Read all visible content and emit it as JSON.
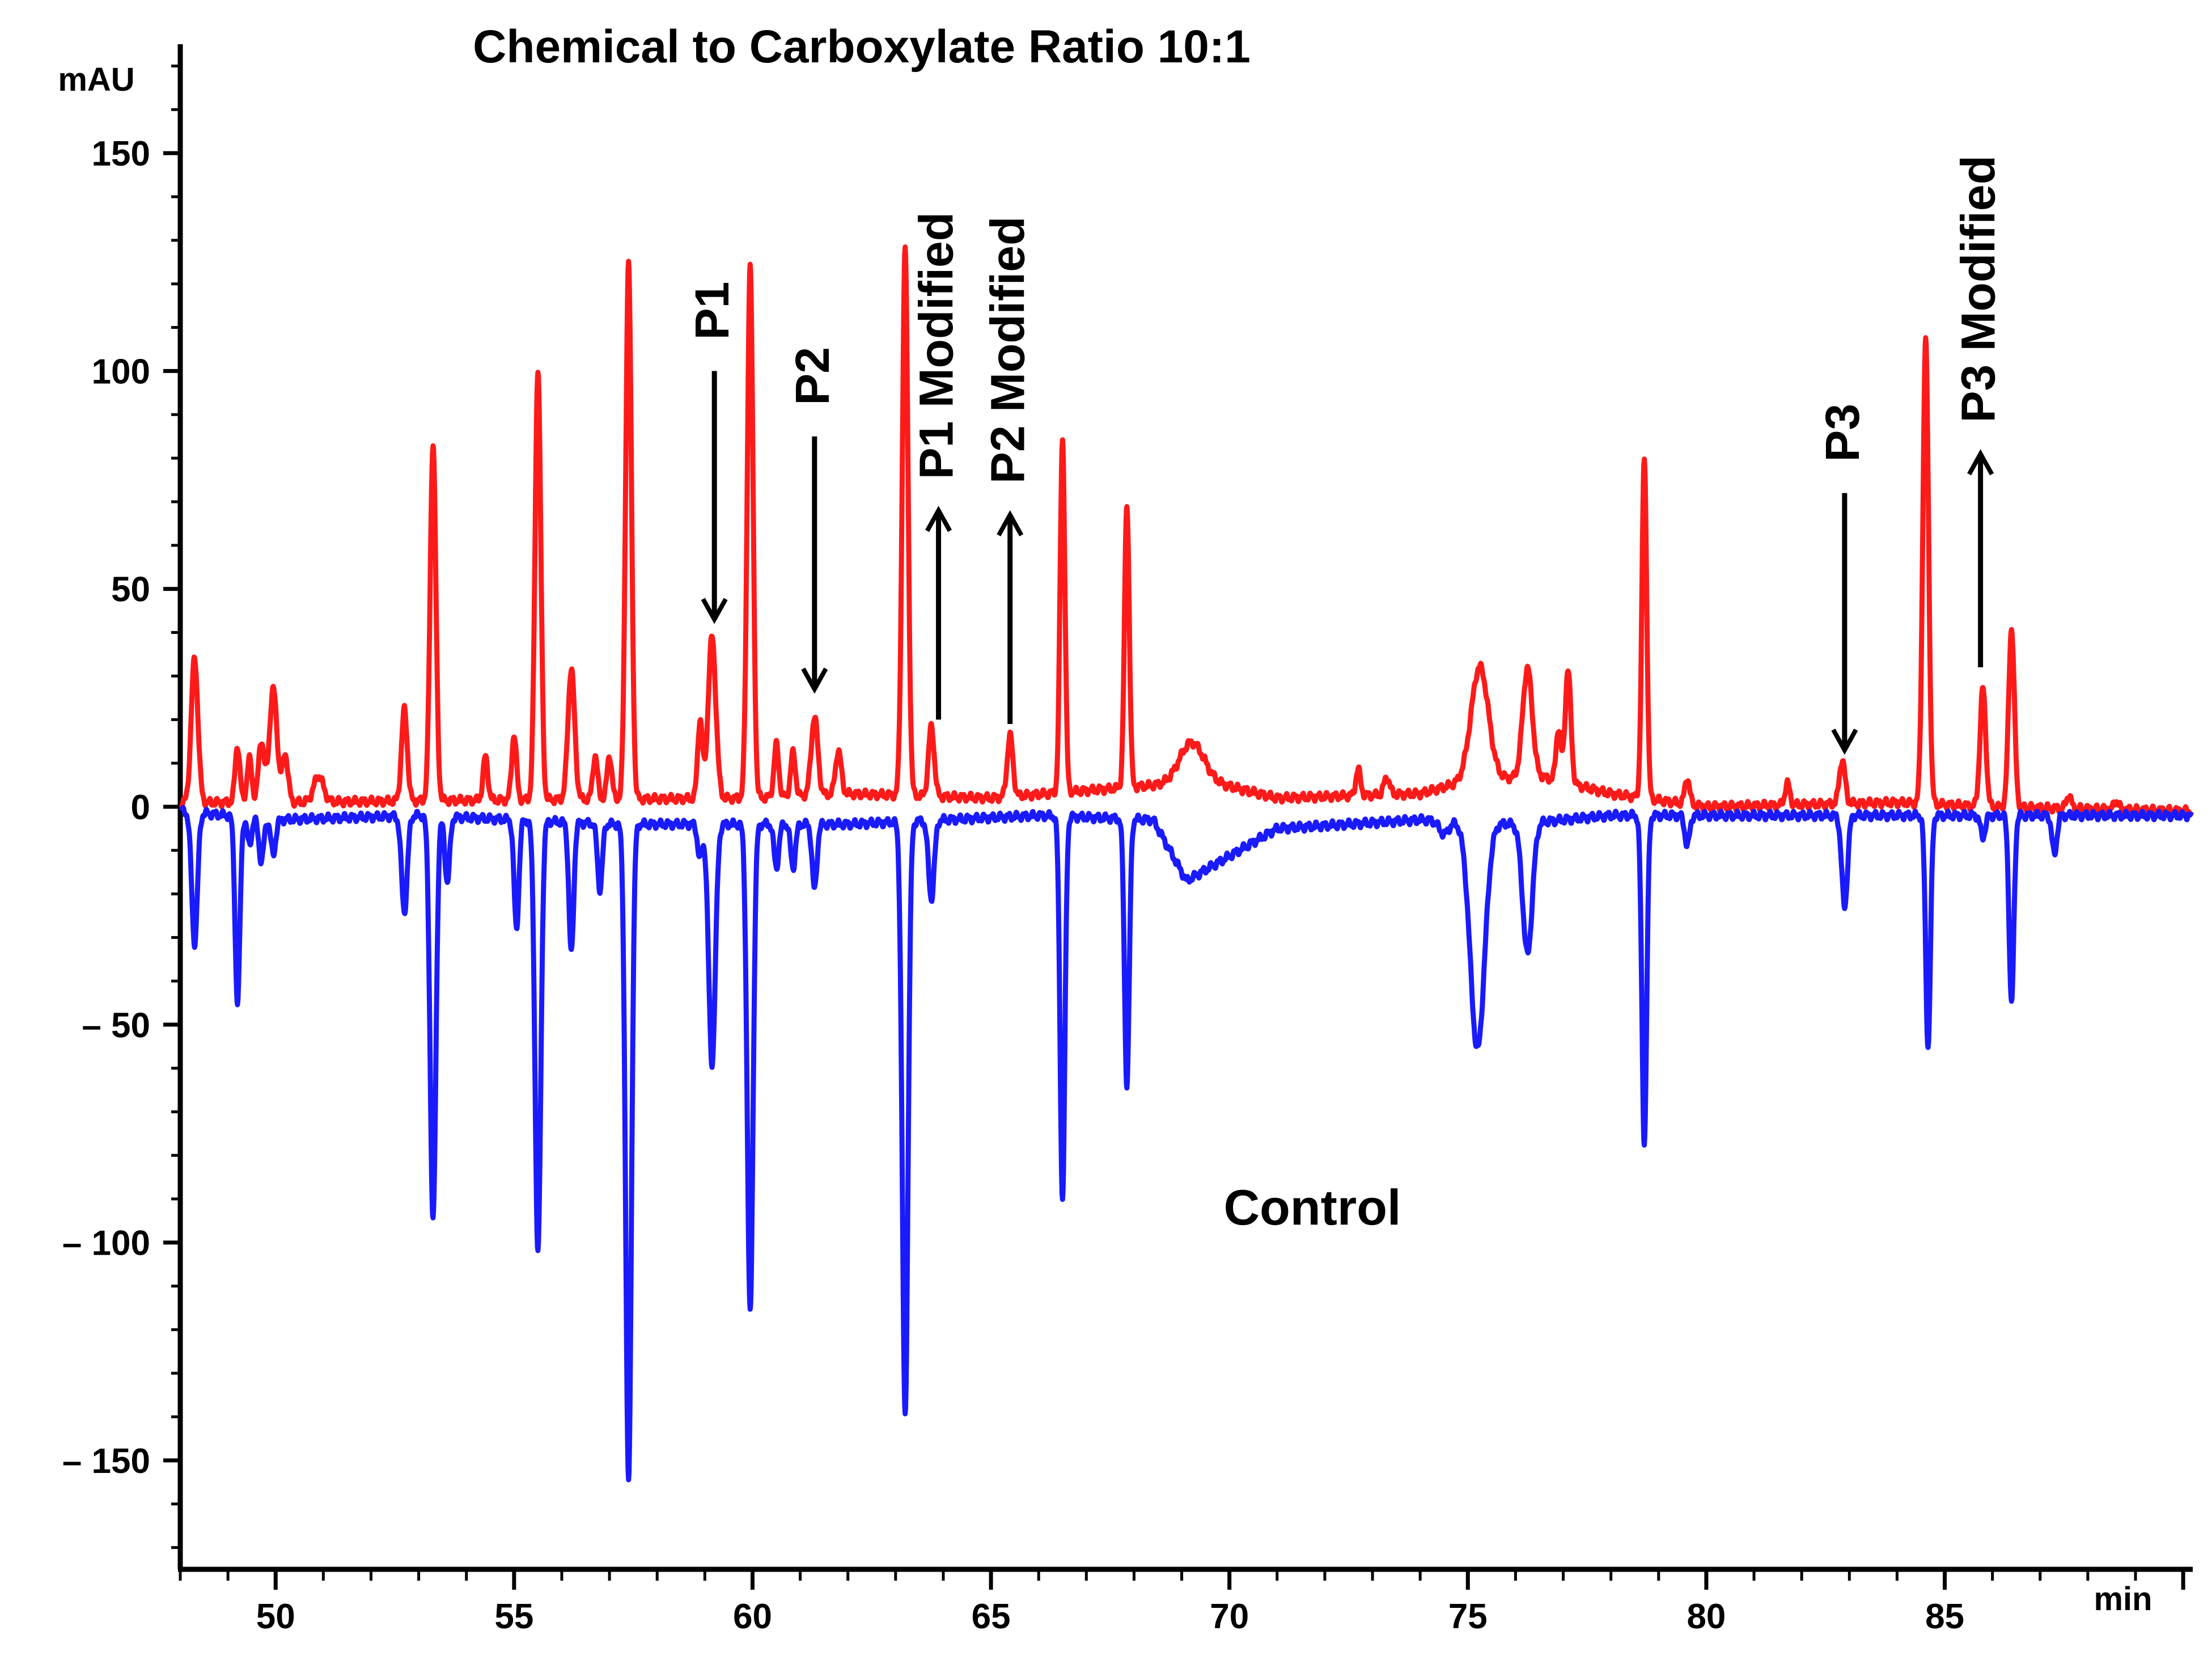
{
  "chart_data": {
    "type": "line",
    "title": "Chemical to Carboxylate Ratio 10:1",
    "ylabel": "mAU",
    "xlabel": "min",
    "xlim": [
      48,
      90.2
    ],
    "ylim": [
      -175,
      175
    ],
    "xticks": [
      50,
      55,
      60,
      65,
      70,
      75,
      80,
      85
    ],
    "xtick_labels": [
      "50",
      "55",
      "60",
      "65",
      "70",
      "75",
      "80",
      "85"
    ],
    "yticks": [
      150,
      100,
      50,
      0,
      -50,
      -100,
      -150
    ],
    "ytick_labels": [
      "150",
      "100",
      "50",
      "0",
      "– 50",
      "– 100",
      "– 150"
    ],
    "grid": false,
    "colors": {
      "sample": "#ff1a1a",
      "control": "#1a1aff",
      "axis": "#000000"
    },
    "control_label": "Control",
    "series": [
      {
        "name": "Chemical to Carboxylate Ratio 10:1",
        "color": "#ff1a1a",
        "baseline": [
          [
            48,
            1
          ],
          [
            50,
            1
          ],
          [
            54,
            1.5
          ],
          [
            60,
            2
          ],
          [
            62,
            3
          ],
          [
            65,
            2
          ],
          [
            68.5,
            5
          ],
          [
            69.5,
            6
          ],
          [
            71,
            2
          ],
          [
            74,
            3
          ],
          [
            75,
            6
          ],
          [
            76.5,
            7
          ],
          [
            78,
            3
          ],
          [
            80,
            0
          ],
          [
            84,
            1
          ],
          [
            86,
            0
          ],
          [
            90.2,
            -1
          ]
        ],
        "peaks": [
          {
            "x": 48.3,
            "y": 33,
            "w": 0.07
          },
          {
            "x": 49.2,
            "y": 13,
            "w": 0.05
          },
          {
            "x": 49.45,
            "y": 10,
            "w": 0.05
          },
          {
            "x": 49.7,
            "y": 14,
            "w": 0.06
          },
          {
            "x": 49.95,
            "y": 26,
            "w": 0.08
          },
          {
            "x": 50.2,
            "y": 11,
            "w": 0.06
          },
          {
            "x": 50.9,
            "y": 6,
            "w": 0.1
          },
          {
            "x": 52.7,
            "y": 21,
            "w": 0.06
          },
          {
            "x": 53.3,
            "y": 82,
            "w": 0.06
          },
          {
            "x": 54.4,
            "y": 10,
            "w": 0.05
          },
          {
            "x": 55.0,
            "y": 15,
            "w": 0.05
          },
          {
            "x": 55.5,
            "y": 99,
            "w": 0.06
          },
          {
            "x": 56.2,
            "y": 30,
            "w": 0.07
          },
          {
            "x": 56.7,
            "y": 10,
            "w": 0.05
          },
          {
            "x": 57.0,
            "y": 10,
            "w": 0.05
          },
          {
            "x": 57.4,
            "y": 123,
            "w": 0.06
          },
          {
            "x": 58.9,
            "y": 18,
            "w": 0.05
          },
          {
            "x": 59.15,
            "y": 37,
            "w": 0.08
          },
          {
            "x": 59.95,
            "y": 122,
            "w": 0.06
          },
          {
            "x": 60.5,
            "y": 12,
            "w": 0.05
          },
          {
            "x": 60.85,
            "y": 10,
            "w": 0.05
          },
          {
            "x": 61.3,
            "y": 18,
            "w": 0.07
          },
          {
            "x": 61.8,
            "y": 10,
            "w": 0.06
          },
          {
            "x": 63.2,
            "y": 125,
            "w": 0.06
          },
          {
            "x": 63.75,
            "y": 16,
            "w": 0.06
          },
          {
            "x": 65.4,
            "y": 14,
            "w": 0.06
          },
          {
            "x": 66.5,
            "y": 81,
            "w": 0.05
          },
          {
            "x": 67.85,
            "y": 65,
            "w": 0.05
          },
          {
            "x": 69.2,
            "y": 9,
            "w": 0.25
          },
          {
            "x": 72.7,
            "y": 6,
            "w": 0.05
          },
          {
            "x": 73.3,
            "y": 4,
            "w": 0.06
          },
          {
            "x": 75.25,
            "y": 26,
            "w": 0.18
          },
          {
            "x": 76.25,
            "y": 25,
            "w": 0.1
          },
          {
            "x": 76.9,
            "y": 12,
            "w": 0.05
          },
          {
            "x": 77.1,
            "y": 26,
            "w": 0.06
          },
          {
            "x": 78.7,
            "y": 78,
            "w": 0.05
          },
          {
            "x": 79.6,
            "y": 6,
            "w": 0.05
          },
          {
            "x": 81.7,
            "y": 5,
            "w": 0.05
          },
          {
            "x": 82.85,
            "y": 10,
            "w": 0.06
          },
          {
            "x": 84.6,
            "y": 106,
            "w": 0.06
          },
          {
            "x": 85.8,
            "y": 27,
            "w": 0.06
          },
          {
            "x": 86.4,
            "y": 41,
            "w": 0.06
          },
          {
            "x": 87.6,
            "y": 3,
            "w": 0.05
          },
          {
            "x": 88.6,
            "y": 2,
            "w": 0.05
          }
        ]
      },
      {
        "name": "Control",
        "color": "#1a1aff",
        "baseline": [
          [
            48,
            -1
          ],
          [
            50,
            -3
          ],
          [
            53,
            -2
          ],
          [
            57,
            -4
          ],
          [
            62,
            -4
          ],
          [
            66,
            -2
          ],
          [
            68.4,
            -3
          ],
          [
            69.1,
            -17
          ],
          [
            71,
            -5
          ],
          [
            74,
            -3
          ],
          [
            76,
            -4
          ],
          [
            78,
            -2
          ],
          [
            80,
            -2
          ],
          [
            90.2,
            -2
          ]
        ],
        "peaks": [
          {
            "x": 48.3,
            "y": -30,
            "w": 0.06
          },
          {
            "x": 49.2,
            "y": -43,
            "w": 0.05
          },
          {
            "x": 49.45,
            "y": -6,
            "w": 0.05
          },
          {
            "x": 49.7,
            "y": -10,
            "w": 0.05
          },
          {
            "x": 49.95,
            "y": -8,
            "w": 0.05
          },
          {
            "x": 52.7,
            "y": -22,
            "w": 0.06
          },
          {
            "x": 53.3,
            "y": -93,
            "w": 0.06
          },
          {
            "x": 53.6,
            "y": -15,
            "w": 0.05
          },
          {
            "x": 55.05,
            "y": -25,
            "w": 0.05
          },
          {
            "x": 55.5,
            "y": -99,
            "w": 0.06
          },
          {
            "x": 56.2,
            "y": -30,
            "w": 0.05
          },
          {
            "x": 56.8,
            "y": -15,
            "w": 0.05
          },
          {
            "x": 57.4,
            "y": -151,
            "w": 0.06
          },
          {
            "x": 58.9,
            "y": -8,
            "w": 0.05
          },
          {
            "x": 59.15,
            "y": -55,
            "w": 0.07
          },
          {
            "x": 59.95,
            "y": -112,
            "w": 0.06
          },
          {
            "x": 60.5,
            "y": -10,
            "w": 0.05
          },
          {
            "x": 60.85,
            "y": -10,
            "w": 0.05
          },
          {
            "x": 61.3,
            "y": -15,
            "w": 0.05
          },
          {
            "x": 63.2,
            "y": -136,
            "w": 0.06
          },
          {
            "x": 63.75,
            "y": -18,
            "w": 0.06
          },
          {
            "x": 66.5,
            "y": -88,
            "w": 0.05
          },
          {
            "x": 67.85,
            "y": -61,
            "w": 0.05
          },
          {
            "x": 74.5,
            "y": -3,
            "w": 0.1
          },
          {
            "x": 75.2,
            "y": -52,
            "w": 0.15
          },
          {
            "x": 76.25,
            "y": -30,
            "w": 0.1
          },
          {
            "x": 78.7,
            "y": -75,
            "w": 0.05
          },
          {
            "x": 79.6,
            "y": -7,
            "w": 0.05
          },
          {
            "x": 82.9,
            "y": -21,
            "w": 0.06
          },
          {
            "x": 84.65,
            "y": -53,
            "w": 0.05
          },
          {
            "x": 85.8,
            "y": -5,
            "w": 0.05
          },
          {
            "x": 86.4,
            "y": -43,
            "w": 0.05
          },
          {
            "x": 87.3,
            "y": -9,
            "w": 0.05
          }
        ]
      }
    ],
    "annotations": [
      {
        "label": "P1",
        "direction": "down",
        "x": 59.2,
        "y_from": 100,
        "y_to": 43
      },
      {
        "label": "P2",
        "direction": "down",
        "x": 61.3,
        "y_from": 85,
        "y_to": 27
      },
      {
        "label": "P1 Modified",
        "direction": "up",
        "x": 63.9,
        "y_from": 20,
        "y_to": 68
      },
      {
        "label": "P2 Modified",
        "direction": "up",
        "x": 65.4,
        "y_from": 19,
        "y_to": 67
      },
      {
        "label": "P3",
        "direction": "down",
        "x": 82.9,
        "y_from": 72,
        "y_to": 13
      },
      {
        "label": "P3 Modified",
        "direction": "up",
        "x": 85.75,
        "y_from": 32,
        "y_to": 81
      }
    ]
  }
}
